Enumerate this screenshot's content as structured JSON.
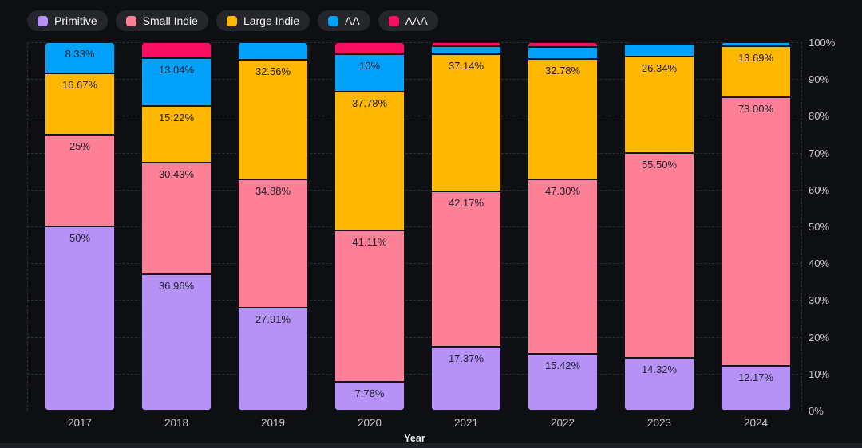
{
  "chart_data": {
    "type": "bar",
    "stacked": true,
    "title": "",
    "xlabel": "Year",
    "ylim": [
      0,
      100
    ],
    "grid": "horizontal-dashed",
    "legend_position": "top-left",
    "categories": [
      "2017",
      "2018",
      "2019",
      "2020",
      "2021",
      "2022",
      "2023",
      "2024"
    ],
    "y_ticks": [
      "0%",
      "10%",
      "20%",
      "30%",
      "40%",
      "50%",
      "60%",
      "70%",
      "80%",
      "90%",
      "100%"
    ],
    "series": [
      {
        "name": "Primitive",
        "color": "#b692f6",
        "values": [
          50,
          36.96,
          27.91,
          7.78,
          17.37,
          15.42,
          14.32,
          12.17
        ],
        "labels": [
          "50%",
          "36.96%",
          "27.91%",
          "7.78%",
          "17.37%",
          "15.42%",
          "14.32%",
          "12.17%"
        ]
      },
      {
        "name": "Small Indie",
        "color": "#fd8097",
        "values": [
          25,
          30.43,
          34.88,
          41.11,
          42.17,
          47.3,
          55.5,
          73
        ],
        "labels": [
          "25%",
          "30.43%",
          "34.88%",
          "41.11%",
          "42.17%",
          "47.30%",
          "55.50%",
          "73.00%"
        ]
      },
      {
        "name": "Large Indie",
        "color": "#ffb702",
        "values": [
          16.67,
          15.22,
          32.56,
          37.78,
          37.14,
          32.78,
          26.34,
          13.69
        ],
        "labels": [
          "16.67%",
          "15.22%",
          "32.56%",
          "37.78%",
          "37.14%",
          "32.78%",
          "26.34%",
          "13.69%"
        ]
      },
      {
        "name": "AA",
        "color": "#02a1fc",
        "values": [
          8.33,
          13.04,
          4.65,
          10,
          2.21,
          3.21,
          3.34,
          1.14
        ],
        "labels": [
          "8.33%",
          "13.04%",
          "",
          "10%",
          "",
          "",
          "",
          ""
        ]
      },
      {
        "name": "AAA",
        "color": "#fb0f61",
        "values": [
          0,
          4.35,
          0,
          3.33,
          1.11,
          1.29,
          0.5,
          0
        ],
        "labels": [
          "",
          "",
          "",
          "",
          "",
          "",
          "",
          ""
        ]
      }
    ]
  },
  "colors": {
    "background": "#0e0f13",
    "legend_pill": "#24262b",
    "grid_line": "#2c2e35",
    "tick_text": "#c7c8cd",
    "segment_label_text": "#222330"
  }
}
